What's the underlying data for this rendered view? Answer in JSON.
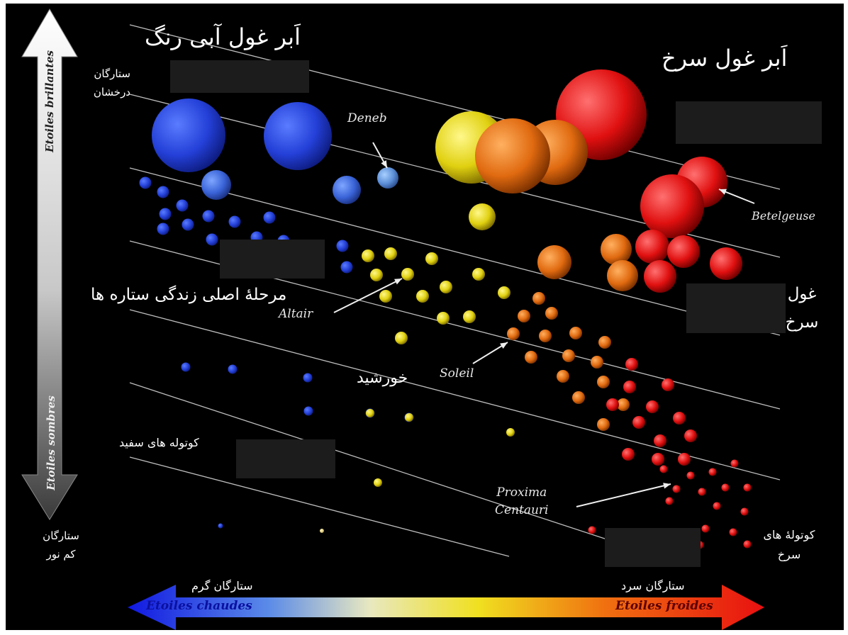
{
  "labels": {
    "blue_supergiants": "اَبر غول آبی رنگ",
    "red_supergiants": "اَبر غول سرخ",
    "bright_stars": "ستارگان\nدرخشان",
    "main_sequence": "مرحلهٔ اصلی زندگی ستاره ها",
    "red_giants": "غول\nسرخ",
    "sun": "خورشید",
    "white_dwarfs": "کوتوله های سفید",
    "dim_stars": "ستارگان\nکم نور",
    "red_dwarfs": "کوتولهٔ های\nسرخ",
    "hot_stars": "ستارگان گرم",
    "cool_stars": "ستارگان سرد"
  },
  "star_names": {
    "deneb": "Deneb",
    "betelgeuse": "Betelgeuse",
    "altair": "Altair",
    "soleil": "Soleil",
    "proxima": "Proxima\nCentauri"
  },
  "axes": {
    "brilliant": "Etoiles brillantes",
    "sombre": "Etoiles sombres",
    "chaudes": "Etoiles chaudes",
    "froides": "Etoiles froides"
  },
  "colors": {
    "blue": "#2a4de8",
    "yellow": "#e8e020",
    "orange": "#e06a10",
    "red": "#e81010",
    "background": "#000000"
  }
}
